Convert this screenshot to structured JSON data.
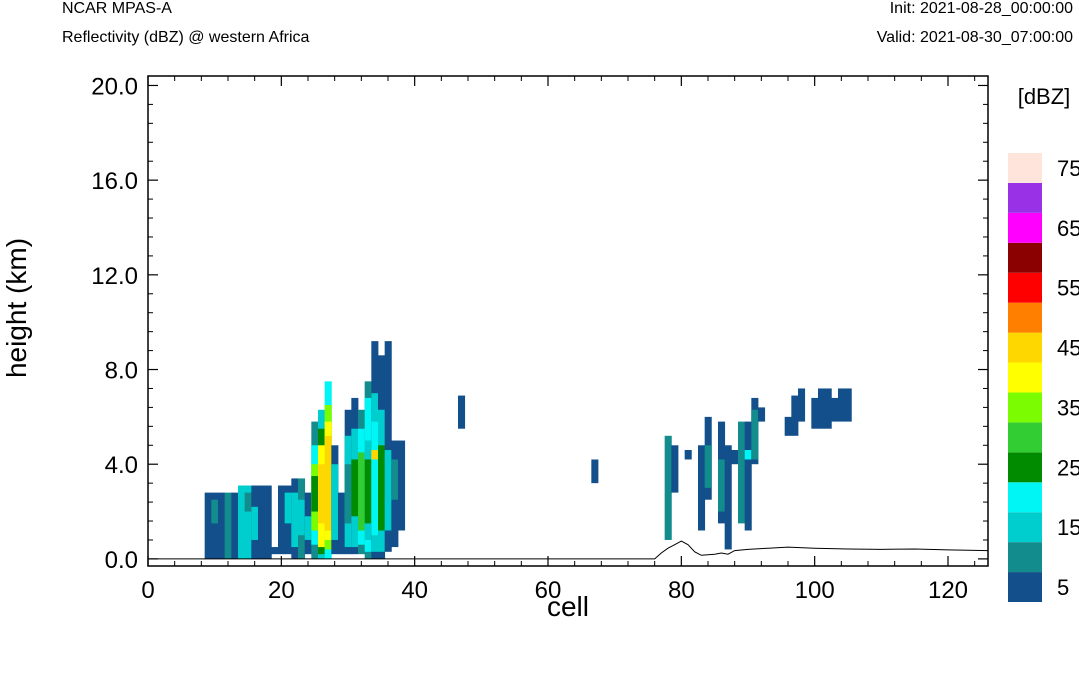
{
  "header": {
    "model": "NCAR MPAS-A",
    "subtitle": "Reflectivity (dBZ) @ western Africa",
    "init": "Init: 2021-08-28_00:00:00",
    "valid": "Valid: 2021-08-30_07:00:00"
  },
  "chart_data": {
    "type": "heatmap",
    "title": "Reflectivity (dBZ) @ western Africa",
    "xlabel": "cell",
    "ylabel": "height (km)",
    "xlim": [
      0,
      126
    ],
    "ylim": [
      -0.3,
      20.4
    ],
    "x_ticks": [
      0,
      20,
      40,
      60,
      80,
      100,
      120
    ],
    "y_ticks": [
      0.0,
      4.0,
      8.0,
      12.0,
      16.0,
      20.0
    ],
    "y_tick_labels": [
      "0.0",
      "4.0",
      "8.0",
      "12.0",
      "16.0",
      "20.0"
    ],
    "colorbar": {
      "title": "[dBZ]",
      "levels": [
        5,
        10,
        15,
        20,
        25,
        30,
        35,
        40,
        45,
        50,
        55,
        60,
        65,
        70,
        75
      ],
      "labels": [
        "5",
        "15",
        "25",
        "35",
        "45",
        "55",
        "65",
        "75"
      ],
      "colors": [
        "#13508b",
        "#128c8c",
        "#00cdcd",
        "#00f5f5",
        "#008b00",
        "#32cd32",
        "#7cfc00",
        "#ffff00",
        "#ffd700",
        "#ff8000",
        "#ff0000",
        "#8b0000",
        "#ff00ff",
        "#9932e6",
        "#ffe4dc"
      ]
    },
    "columns": [
      {
        "x": 9,
        "cells": [
          {
            "bottom": 0.0,
            "top": 2.8,
            "dbz": 5
          }
        ]
      },
      {
        "x": 10,
        "cells": [
          {
            "bottom": 0.0,
            "top": 2.8,
            "dbz": 5
          },
          {
            "bottom": 1.5,
            "top": 2.5,
            "dbz": 10
          }
        ]
      },
      {
        "x": 11,
        "cells": [
          {
            "bottom": 0.0,
            "top": 2.8,
            "dbz": 5
          }
        ]
      },
      {
        "x": 12,
        "cells": [
          {
            "bottom": 0.0,
            "top": 2.8,
            "dbz": 10
          }
        ]
      },
      {
        "x": 13,
        "cells": [
          {
            "bottom": 0.0,
            "top": 2.8,
            "dbz": 5
          }
        ]
      },
      {
        "x": 14,
        "cells": [
          {
            "bottom": 0.0,
            "top": 3.1,
            "dbz": 15
          }
        ]
      },
      {
        "x": 15,
        "cells": [
          {
            "bottom": 0.0,
            "top": 3.1,
            "dbz": 15
          },
          {
            "bottom": 2.0,
            "top": 2.8,
            "dbz": 10
          }
        ]
      },
      {
        "x": 16,
        "cells": [
          {
            "bottom": 0.0,
            "top": 3.1,
            "dbz": 5
          },
          {
            "bottom": 0.8,
            "top": 2.2,
            "dbz": 15
          }
        ]
      },
      {
        "x": 17,
        "cells": [
          {
            "bottom": 0.0,
            "top": 3.1,
            "dbz": 5
          }
        ]
      },
      {
        "x": 18,
        "cells": [
          {
            "bottom": 0.0,
            "top": 3.1,
            "dbz": 5
          }
        ]
      },
      {
        "x": 19,
        "cells": [
          {
            "bottom": 0.2,
            "top": 0.5,
            "dbz": 5
          }
        ]
      },
      {
        "x": 20,
        "cells": [
          {
            "bottom": 0.2,
            "top": 3.1,
            "dbz": 5
          }
        ]
      },
      {
        "x": 21,
        "cells": [
          {
            "bottom": 0.2,
            "top": 3.1,
            "dbz": 5
          },
          {
            "bottom": 1.5,
            "top": 2.8,
            "dbz": 15
          }
        ]
      },
      {
        "x": 22,
        "cells": [
          {
            "bottom": 0.0,
            "top": 3.4,
            "dbz": 5
          },
          {
            "bottom": 0.5,
            "top": 2.8,
            "dbz": 15
          }
        ]
      },
      {
        "x": 23,
        "cells": [
          {
            "bottom": 0.0,
            "top": 3.4,
            "dbz": 10
          },
          {
            "bottom": 1.0,
            "top": 2.5,
            "dbz": 15
          }
        ]
      },
      {
        "x": 24,
        "cells": [
          {
            "bottom": 0.2,
            "top": 2.8,
            "dbz": 5
          },
          {
            "bottom": 0.8,
            "top": 1.8,
            "dbz": 15
          }
        ]
      },
      {
        "x": 25,
        "cells": [
          {
            "bottom": 0.0,
            "top": 5.8,
            "dbz": 10
          },
          {
            "bottom": 0.6,
            "top": 4.8,
            "dbz": 20
          },
          {
            "bottom": 1.2,
            "top": 4.0,
            "dbz": 35
          },
          {
            "bottom": 2.0,
            "top": 3.5,
            "dbz": 25
          }
        ]
      },
      {
        "x": 26,
        "cells": [
          {
            "bottom": 0.0,
            "top": 6.3,
            "dbz": 15
          },
          {
            "bottom": 0.2,
            "top": 5.5,
            "dbz": 25
          },
          {
            "bottom": 0.5,
            "top": 4.8,
            "dbz": 40
          },
          {
            "bottom": 1.5,
            "top": 4.0,
            "dbz": 45
          }
        ]
      },
      {
        "x": 27,
        "cells": [
          {
            "bottom": 0.0,
            "top": 7.5,
            "dbz": 20
          },
          {
            "bottom": 0.4,
            "top": 6.5,
            "dbz": 35
          },
          {
            "bottom": 0.8,
            "top": 5.8,
            "dbz": 40
          },
          {
            "bottom": 1.2,
            "top": 5.2,
            "dbz": 45
          }
        ]
      },
      {
        "x": 28,
        "cells": [
          {
            "bottom": 0.2,
            "top": 4.8,
            "dbz": 5
          },
          {
            "bottom": 0.8,
            "top": 4.0,
            "dbz": 15
          }
        ]
      },
      {
        "x": 29,
        "cells": [
          {
            "bottom": 0.2,
            "top": 2.8,
            "dbz": 5
          }
        ]
      },
      {
        "x": 30,
        "cells": [
          {
            "bottom": 0.2,
            "top": 6.3,
            "dbz": 5
          },
          {
            "bottom": 0.5,
            "top": 5.2,
            "dbz": 15
          },
          {
            "bottom": 1.5,
            "top": 4.0,
            "dbz": 10
          }
        ]
      },
      {
        "x": 31,
        "cells": [
          {
            "bottom": 0.2,
            "top": 6.8,
            "dbz": 5
          },
          {
            "bottom": 0.5,
            "top": 5.5,
            "dbz": 15
          },
          {
            "bottom": 1.8,
            "top": 4.2,
            "dbz": 25
          }
        ]
      },
      {
        "x": 32,
        "cells": [
          {
            "bottom": 0.2,
            "top": 6.3,
            "dbz": 10
          },
          {
            "bottom": 0.6,
            "top": 5.5,
            "dbz": 20
          },
          {
            "bottom": 1.2,
            "top": 4.5,
            "dbz": 30
          }
        ]
      },
      {
        "x": 33,
        "cells": [
          {
            "bottom": 0.0,
            "top": 7.5,
            "dbz": 10
          },
          {
            "bottom": 0.3,
            "top": 6.8,
            "dbz": 20
          },
          {
            "bottom": 0.8,
            "top": 5.0,
            "dbz": 15
          },
          {
            "bottom": 1.5,
            "top": 4.2,
            "dbz": 25
          }
        ]
      },
      {
        "x": 34,
        "cells": [
          {
            "bottom": 0.0,
            "top": 9.2,
            "dbz": 5
          },
          {
            "bottom": 0.3,
            "top": 7.0,
            "dbz": 15
          },
          {
            "bottom": 1.0,
            "top": 5.8,
            "dbz": 20
          },
          {
            "bottom": 4.2,
            "top": 4.6,
            "dbz": 45
          }
        ]
      },
      {
        "x": 35,
        "cells": [
          {
            "bottom": 0.0,
            "top": 8.6,
            "dbz": 5
          },
          {
            "bottom": 0.3,
            "top": 6.3,
            "dbz": 15
          },
          {
            "bottom": 1.2,
            "top": 4.8,
            "dbz": 25
          }
        ]
      },
      {
        "x": 36,
        "cells": [
          {
            "bottom": 0.3,
            "top": 9.2,
            "dbz": 5
          },
          {
            "bottom": 1.2,
            "top": 4.6,
            "dbz": 15
          }
        ]
      },
      {
        "x": 37,
        "cells": [
          {
            "bottom": 0.5,
            "top": 5.0,
            "dbz": 5
          },
          {
            "bottom": 2.5,
            "top": 4.2,
            "dbz": 10
          }
        ]
      },
      {
        "x": 38,
        "cells": [
          {
            "bottom": 1.2,
            "top": 5.0,
            "dbz": 5
          }
        ]
      },
      {
        "x": 47,
        "cells": [
          {
            "bottom": 5.5,
            "top": 6.9,
            "dbz": 5
          }
        ]
      },
      {
        "x": 67,
        "cells": [
          {
            "bottom": 3.2,
            "top": 4.2,
            "dbz": 5
          }
        ]
      },
      {
        "x": 78,
        "cells": [
          {
            "bottom": 0.8,
            "top": 5.2,
            "dbz": 10
          }
        ]
      },
      {
        "x": 79,
        "cells": [
          {
            "bottom": 2.8,
            "top": 4.8,
            "dbz": 5
          }
        ]
      },
      {
        "x": 81,
        "cells": [
          {
            "bottom": 4.2,
            "top": 4.6,
            "dbz": 5
          }
        ]
      },
      {
        "x": 83,
        "cells": [
          {
            "bottom": 1.2,
            "top": 4.8,
            "dbz": 5
          }
        ]
      },
      {
        "x": 84,
        "cells": [
          {
            "bottom": 2.5,
            "top": 6.0,
            "dbz": 5
          },
          {
            "bottom": 3.0,
            "top": 4.8,
            "dbz": 10
          }
        ]
      },
      {
        "x": 86,
        "cells": [
          {
            "bottom": 1.5,
            "top": 5.8,
            "dbz": 5
          },
          {
            "bottom": 2.0,
            "top": 4.2,
            "dbz": 10
          }
        ]
      },
      {
        "x": 87,
        "cells": [
          {
            "bottom": 0.4,
            "top": 4.8,
            "dbz": 5
          }
        ]
      },
      {
        "x": 88,
        "cells": [
          {
            "bottom": 4.0,
            "top": 4.6,
            "dbz": 5
          }
        ]
      },
      {
        "x": 89,
        "cells": [
          {
            "bottom": 1.5,
            "top": 5.8,
            "dbz": 10
          }
        ]
      },
      {
        "x": 90,
        "cells": [
          {
            "bottom": 1.2,
            "top": 5.8,
            "dbz": 5
          },
          {
            "bottom": 4.2,
            "top": 4.6,
            "dbz": 20
          }
        ]
      },
      {
        "x": 91,
        "cells": [
          {
            "bottom": 4.0,
            "top": 6.8,
            "dbz": 5
          },
          {
            "bottom": 4.2,
            "top": 6.3,
            "dbz": 10
          }
        ]
      },
      {
        "x": 92,
        "cells": [
          {
            "bottom": 5.8,
            "top": 6.4,
            "dbz": 5
          }
        ]
      },
      {
        "x": 96,
        "cells": [
          {
            "bottom": 5.2,
            "top": 6.0,
            "dbz": 5
          }
        ]
      },
      {
        "x": 97,
        "cells": [
          {
            "bottom": 5.2,
            "top": 6.9,
            "dbz": 5
          }
        ]
      },
      {
        "x": 98,
        "cells": [
          {
            "bottom": 5.8,
            "top": 7.2,
            "dbz": 5
          }
        ]
      },
      {
        "x": 100,
        "cells": [
          {
            "bottom": 5.5,
            "top": 6.8,
            "dbz": 5
          }
        ]
      },
      {
        "x": 101,
        "cells": [
          {
            "bottom": 5.5,
            "top": 7.2,
            "dbz": 5
          }
        ]
      },
      {
        "x": 102,
        "cells": [
          {
            "bottom": 5.5,
            "top": 7.2,
            "dbz": 5
          }
        ]
      },
      {
        "x": 103,
        "cells": [
          {
            "bottom": 5.8,
            "top": 6.8,
            "dbz": 5
          }
        ]
      },
      {
        "x": 104,
        "cells": [
          {
            "bottom": 5.8,
            "top": 7.2,
            "dbz": 5
          }
        ]
      },
      {
        "x": 105,
        "cells": [
          {
            "bottom": 5.8,
            "top": 7.2,
            "dbz": 5
          }
        ]
      }
    ],
    "terrain": [
      [
        0,
        0
      ],
      [
        76,
        0.0
      ],
      [
        77,
        0.25
      ],
      [
        78,
        0.45
      ],
      [
        79,
        0.6
      ],
      [
        80,
        0.75
      ],
      [
        81,
        0.6
      ],
      [
        82,
        0.3
      ],
      [
        83,
        0.15
      ],
      [
        85,
        0.2
      ],
      [
        86,
        0.25
      ],
      [
        87,
        0.2
      ],
      [
        88,
        0.35
      ],
      [
        90,
        0.4
      ],
      [
        93,
        0.45
      ],
      [
        96,
        0.5
      ],
      [
        100,
        0.45
      ],
      [
        105,
        0.42
      ],
      [
        110,
        0.4
      ],
      [
        115,
        0.42
      ],
      [
        120,
        0.38
      ],
      [
        126,
        0.35
      ]
    ]
  }
}
